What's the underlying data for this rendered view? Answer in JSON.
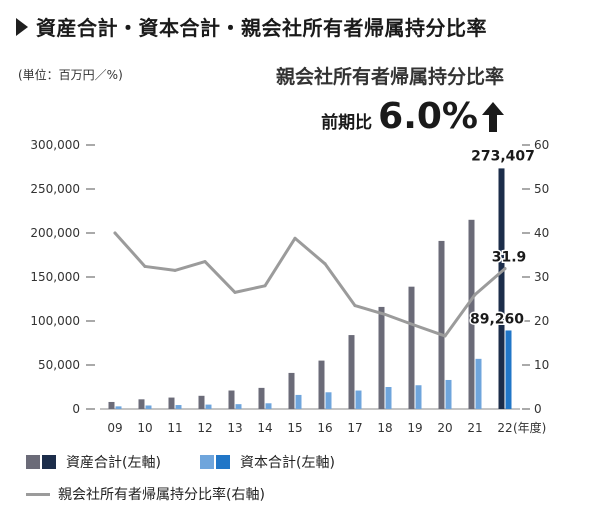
{
  "header": {
    "title": "資産合計・資本合計・親会社所有者帰属持分比率",
    "unit": "(単位：百万円／%)"
  },
  "highlight": {
    "title": "親会社所有者帰属持分比率",
    "prefix": "前期比",
    "value": "6.0%",
    "arrow_icon": "up-arrow-icon"
  },
  "chart_data": {
    "type": "bar",
    "categories": [
      "09",
      "10",
      "11",
      "12",
      "13",
      "14",
      "15",
      "16",
      "17",
      "18",
      "19",
      "20",
      "21",
      "22"
    ],
    "x_unit_label": "(年度)",
    "left_axis": {
      "min": 0,
      "max": 300000,
      "ticks": [
        0,
        50000,
        100000,
        150000,
        200000,
        250000,
        300000
      ],
      "tick_labels": [
        "0",
        "50,000",
        "100,000",
        "150,000",
        "200,000",
        "250,000",
        "300,000"
      ]
    },
    "right_axis": {
      "min": 0,
      "max": 60,
      "ticks": [
        0,
        10,
        20,
        30,
        40,
        50,
        60
      ],
      "tick_labels": [
        "0",
        "10",
        "20",
        "30",
        "40",
        "50",
        "60"
      ]
    },
    "series": [
      {
        "name": "資産合計(左軸)",
        "axis": "left",
        "kind": "bar",
        "color": "#6b6b78",
        "highlight_color": "#1c2d4a",
        "values": [
          8000,
          11000,
          13000,
          15000,
          21000,
          24000,
          41000,
          55000,
          84000,
          116000,
          139000,
          191000,
          215000,
          273407
        ]
      },
      {
        "name": "資本合計(左軸)",
        "axis": "left",
        "kind": "bar",
        "color": "#6fa5dc",
        "highlight_color": "#2176c7",
        "values": [
          3000,
          4000,
          4500,
          5000,
          5500,
          6500,
          16000,
          19000,
          21000,
          25000,
          27000,
          33000,
          57000,
          89260
        ]
      },
      {
        "name": "親会社所有者帰属持分比率(右軸)",
        "axis": "right",
        "kind": "line",
        "color": "#9b9b9b",
        "values": [
          40.0,
          32.4,
          31.5,
          33.5,
          26.5,
          28.0,
          38.8,
          33.0,
          23.5,
          21.5,
          19.0,
          16.6,
          26.0,
          31.9
        ]
      }
    ],
    "data_labels": [
      {
        "series": 0,
        "index": 13,
        "text": "273,407"
      },
      {
        "series": 1,
        "index": 13,
        "text": "89,260"
      },
      {
        "series": 2,
        "index": 13,
        "text": "31.9"
      }
    ]
  },
  "legend": {
    "items": [
      {
        "label": "資産合計(左軸)",
        "colors": [
          "#6b6b78",
          "#1c2d4a"
        ]
      },
      {
        "label": "資本合計(左軸)",
        "colors": [
          "#6fa5dc",
          "#2176c7"
        ]
      },
      {
        "label": "親会社所有者帰属持分比率(右軸)",
        "line_color": "#9b9b9b"
      }
    ]
  }
}
